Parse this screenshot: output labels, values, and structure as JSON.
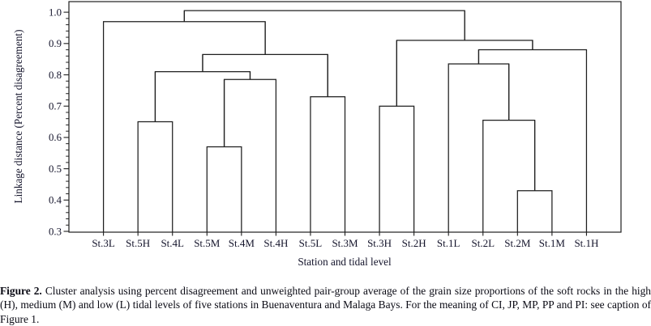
{
  "figure": {
    "caption_label": "Figure 2.",
    "caption_text": " Cluster analysis using percent disagreement and unweighted pair-group average of the grain size proportions of the soft rocks in the high (H), medium (M) and low (L) tidal levels of five stations in Buenaventura and Malaga Bays. For the meaning of CI, JP, MP, PP and PI: see caption of Figure 1."
  },
  "colors": {
    "line": "#1f1f1f",
    "text": "#14142b",
    "background": "#ffffff"
  },
  "chart_data": {
    "type": "dendrogram",
    "title": "",
    "xlabel": "Station and tidal level",
    "ylabel": "Linkage distance (Percent disagreement)",
    "ylim": [
      0.3,
      1.0
    ],
    "grid": false,
    "legend": "none",
    "y_ticks": [
      {
        "label": "1.0",
        "value": 1.0
      },
      {
        "label": "0.9",
        "value": 0.9
      },
      {
        "label": "0.8",
        "value": 0.8
      },
      {
        "label": "0.7",
        "value": 0.7
      },
      {
        "label": "0.6",
        "value": 0.6
      },
      {
        "label": "0.5",
        "value": 0.5
      },
      {
        "label": "0.4",
        "value": 0.4
      },
      {
        "label": "0.3",
        "value": 0.3
      }
    ],
    "y_minor_step": 0.02,
    "leaves": [
      "St.3L",
      "St.5H",
      "St.4L",
      "St.5M",
      "St.4M",
      "St.4H",
      "St.5L",
      "St.3M",
      "St.3H",
      "St.2H",
      "St.1L",
      "St.2L",
      "St.2M",
      "St.1M",
      "St.1H"
    ],
    "merges": [
      {
        "id": "M1",
        "a": "L1",
        "b": "L2",
        "h": 0.65
      },
      {
        "id": "M2",
        "a": "L3",
        "b": "L4",
        "h": 0.57
      },
      {
        "id": "M3",
        "a": "M2",
        "b": "L5",
        "h": 0.785
      },
      {
        "id": "M4",
        "a": "M1",
        "b": "M3",
        "h": 0.81
      },
      {
        "id": "M5",
        "a": "L6",
        "b": "L7",
        "h": 0.73
      },
      {
        "id": "M6",
        "a": "M4",
        "b": "M5",
        "h": 0.865
      },
      {
        "id": "M7",
        "a": "L0",
        "b": "M6",
        "h": 0.97
      },
      {
        "id": "M8",
        "a": "L8",
        "b": "L9",
        "h": 0.7
      },
      {
        "id": "M9",
        "a": "L12",
        "b": "L13",
        "h": 0.43
      },
      {
        "id": "M10",
        "a": "L11",
        "b": "M9",
        "h": 0.655
      },
      {
        "id": "M11",
        "a": "L10",
        "b": "M10",
        "h": 0.835
      },
      {
        "id": "M12",
        "a": "M11",
        "b": "L14",
        "h": 0.88
      },
      {
        "id": "M13",
        "a": "M8",
        "b": "M12",
        "h": 0.91
      },
      {
        "id": "M14",
        "a": "M7",
        "b": "M13",
        "h": 1.005
      }
    ]
  }
}
